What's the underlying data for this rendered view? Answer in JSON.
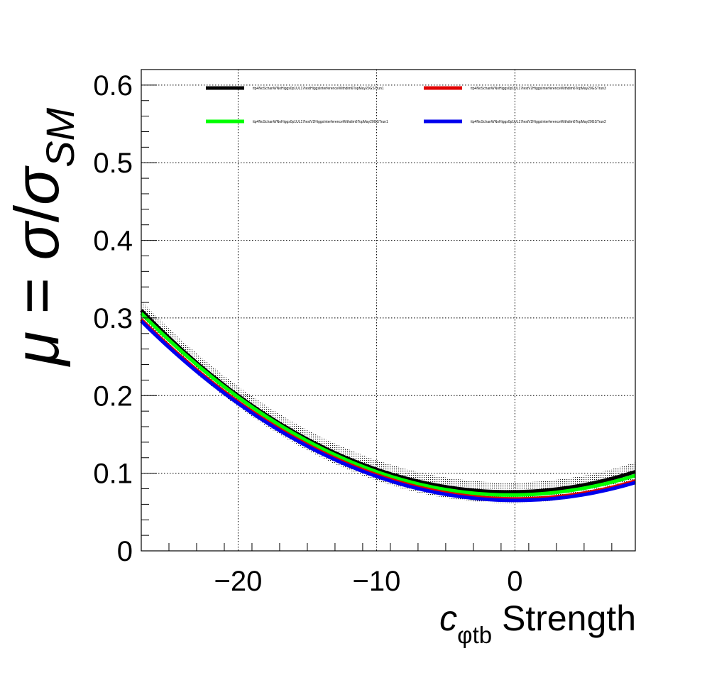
{
  "chart_data": {
    "type": "line",
    "xlabel": {
      "main": "c",
      "sub": "φtb",
      "rest": " Strength"
    },
    "ylabel": {
      "mu": "μ",
      "eq": " = ",
      "sigma": "σ",
      "slash": "/",
      "sigma2": "σ",
      "sub": "SM"
    },
    "xlim": [
      -27,
      8.7
    ],
    "ylim": [
      0,
      0.62
    ],
    "x_ticks": [
      -20,
      -10,
      0
    ],
    "x_tick_labels": [
      "−20",
      "−10",
      "0"
    ],
    "y_ticks": [
      0,
      0.1,
      0.2,
      0.3,
      0.4,
      0.5,
      0.6
    ],
    "y_tick_labels": [
      "0",
      "0.1",
      "0.2",
      "0.3",
      "0.4",
      "0.5",
      "0.6"
    ],
    "grid": true,
    "legend_position": "top",
    "series": [
      {
        "name": "ttp4NoSchanWNoHiggs0p1UL17testHiggsInterferenceWithdim6TopMay20GSTrun1",
        "color": "#000000",
        "x": [
          -27,
          -20,
          -10,
          0,
          8.7
        ],
        "y": [
          0.31,
          0.2,
          0.105,
          0.076,
          0.102
        ],
        "band": 0.012
      },
      {
        "name": "ttp4NoSchanWNoHiggs0p1UL17testV2HiggsInterferenceWithdim6TopMay20GSTrun3",
        "color": "#e00000",
        "x": [
          -27,
          -20,
          -10,
          0,
          8.7
        ],
        "y": [
          0.298,
          0.192,
          0.098,
          0.067,
          0.09
        ],
        "band": 0.0
      },
      {
        "name": "ttp4NoSchanWNoHiggs0p1UL17testV2HiggsInterferenceWithdim6TopMay20GSTrun1",
        "color": "#00ff00",
        "x": [
          -27,
          -20,
          -10,
          0,
          8.7
        ],
        "y": [
          0.306,
          0.198,
          0.102,
          0.072,
          0.097
        ],
        "band": 0.0
      },
      {
        "name": "ttp4NoSchanWNoHiggs0p1UL17testV2HiggsInterferenceWithdim6TopMay20GSTrun2",
        "color": "#0000ee",
        "x": [
          -27,
          -20,
          -10,
          0,
          8.7
        ],
        "y": [
          0.296,
          0.19,
          0.096,
          0.065,
          0.088
        ],
        "band": 0.0
      }
    ]
  }
}
